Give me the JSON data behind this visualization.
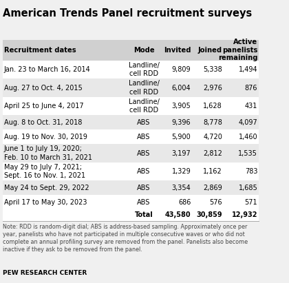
{
  "title": "American Trends Panel recruitment surveys",
  "headers": [
    "Recruitment dates",
    "Mode",
    "Invited",
    "Joined",
    "Active\npanelists\nremaining"
  ],
  "rows": [
    [
      "Jan. 23 to March 16, 2014",
      "Landline/\ncell RDD",
      "9,809",
      "5,338",
      "1,494"
    ],
    [
      "Aug. 27 to Oct. 4, 2015",
      "Landline/\ncell RDD",
      "6,004",
      "2,976",
      "876"
    ],
    [
      "April 25 to June 4, 2017",
      "Landline/\ncell RDD",
      "3,905",
      "1,628",
      "431"
    ],
    [
      "Aug. 8 to Oct. 31, 2018",
      "ABS",
      "9,396",
      "8,778",
      "4,097"
    ],
    [
      "Aug. 19 to Nov. 30, 2019",
      "ABS",
      "5,900",
      "4,720",
      "1,460"
    ],
    [
      "June 1 to July 19, 2020;\nFeb. 10 to March 31, 2021",
      "ABS",
      "3,197",
      "2,812",
      "1,535"
    ],
    [
      "May 29 to July 7, 2021;\nSept. 16 to Nov. 1, 2021",
      "ABS",
      "1,329",
      "1,162",
      "783"
    ],
    [
      "May 24 to Sept. 29, 2022",
      "ABS",
      "3,354",
      "2,869",
      "1,685"
    ],
    [
      "April 17 to May 30, 2023",
      "ABS",
      "686",
      "576",
      "571"
    ]
  ],
  "total_row": [
    "",
    "Total",
    "43,580",
    "30,859",
    "12,932"
  ],
  "note": "Note: RDD is random-digit dial; ABS is address-based sampling. Approximately once per\nyear, panelists who have not participated in multiple consecutive waves or who did not\ncomplete an annual profiling survey are removed from the panel. Panelists also become\ninactive if they ask to be removed from the panel.",
  "footer": "PEW RESEARCH CENTER",
  "bg_color": "#f0f0f0",
  "header_bg": "#d0d0d0",
  "white_bg": "#ffffff",
  "stripe_color": "#e8e8e8",
  "title_color": "#000000",
  "text_color": "#000000",
  "note_color": "#444444"
}
